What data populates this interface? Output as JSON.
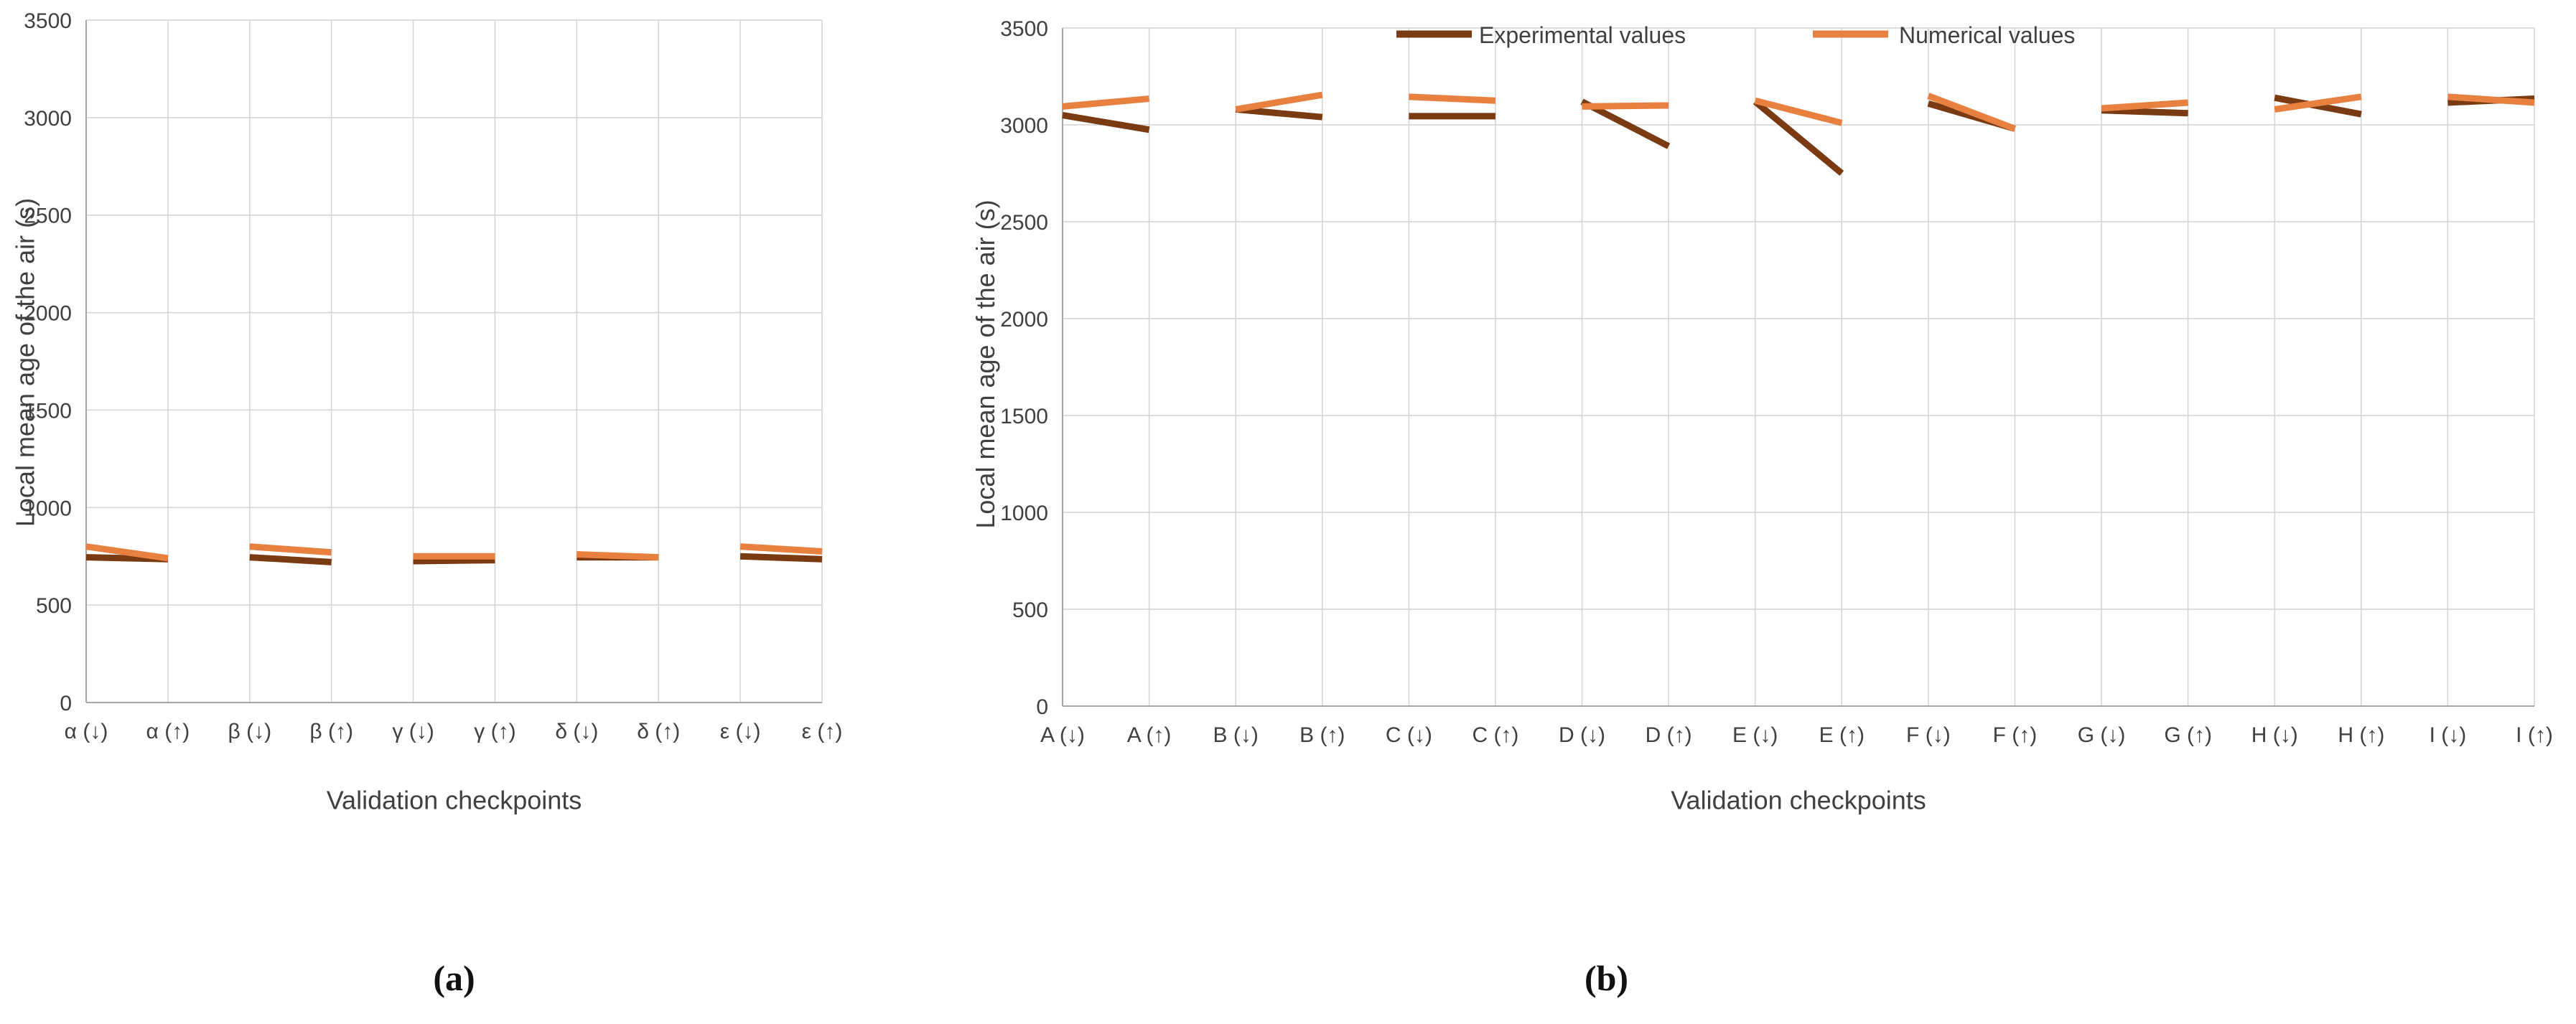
{
  "figure": {
    "colors": {
      "experimental": "#7a3a12",
      "numerical": "#e8813f",
      "grid": "#d4d4d4",
      "axis": "#a6a6a6",
      "text": "#404040",
      "caption": "#111111"
    }
  },
  "chart_data": [
    {
      "type": "line",
      "panel": "a",
      "caption": "(a)",
      "xlabel": "Validation checkpoints",
      "ylabel": "Local mean age of the air (s)",
      "ylim": [
        0,
        3500
      ],
      "yticks": [
        0,
        500,
        1000,
        1500,
        2000,
        2500,
        3000,
        3500
      ],
      "ytick_labels": [
        "0",
        "500",
        "1000",
        "1500",
        "2000",
        "2500",
        "3000",
        "3500"
      ],
      "grid": true,
      "legend": null,
      "categories": [
        "α (↓)",
        "α (↑)",
        "β (↓)",
        "β (↑)",
        "γ (↓)",
        "γ (↑)",
        "δ (↓)",
        "δ (↑)",
        "ε (↓)",
        "ε (↑)"
      ],
      "series": [
        {
          "name": "Experimental values",
          "color_key": "experimental",
          "values": [
            745,
            735,
            745,
            720,
            725,
            730,
            745,
            745,
            750,
            735
          ]
        },
        {
          "name": "Numerical values",
          "color_key": "numerical",
          "values": [
            800,
            740,
            800,
            770,
            750,
            750,
            760,
            745,
            800,
            775
          ]
        }
      ]
    },
    {
      "type": "line",
      "panel": "b",
      "caption": "(b)",
      "xlabel": "Validation checkpoints",
      "ylabel": "Local mean age of the air (s)",
      "ylim": [
        0,
        3500
      ],
      "yticks": [
        0,
        500,
        1000,
        1500,
        2000,
        2500,
        3000,
        3500
      ],
      "ytick_labels": [
        "0",
        "500",
        "1000",
        "1500",
        "2000",
        "2500",
        "3000",
        "3500"
      ],
      "grid": true,
      "legend": {
        "position": "top",
        "entries": [
          "Experimental values",
          "Numerical values"
        ]
      },
      "categories": [
        "A (↓)",
        "A (↑)",
        "B (↓)",
        "B (↑)",
        "C (↓)",
        "C (↑)",
        "D (↓)",
        "D (↑)",
        "E (↓)",
        "E (↑)",
        "F (↓)",
        "F (↑)",
        "G (↓)",
        "G (↑)",
        "H (↓)",
        "H (↑)",
        "I (↓)",
        "I (↑)"
      ],
      "series": [
        {
          "name": "Experimental values",
          "color_key": "experimental",
          "values": [
            3050,
            2975,
            3080,
            3040,
            3045,
            3045,
            3120,
            2890,
            3120,
            2750,
            3110,
            2980,
            3075,
            3060,
            3140,
            3055,
            3115,
            3135
          ]
        },
        {
          "name": "Numerical values",
          "color_key": "numerical",
          "values": [
            3095,
            3135,
            3080,
            3155,
            3145,
            3125,
            3095,
            3100,
            3125,
            3010,
            3150,
            2980,
            3085,
            3115,
            3080,
            3145,
            3145,
            3115
          ]
        }
      ]
    }
  ]
}
